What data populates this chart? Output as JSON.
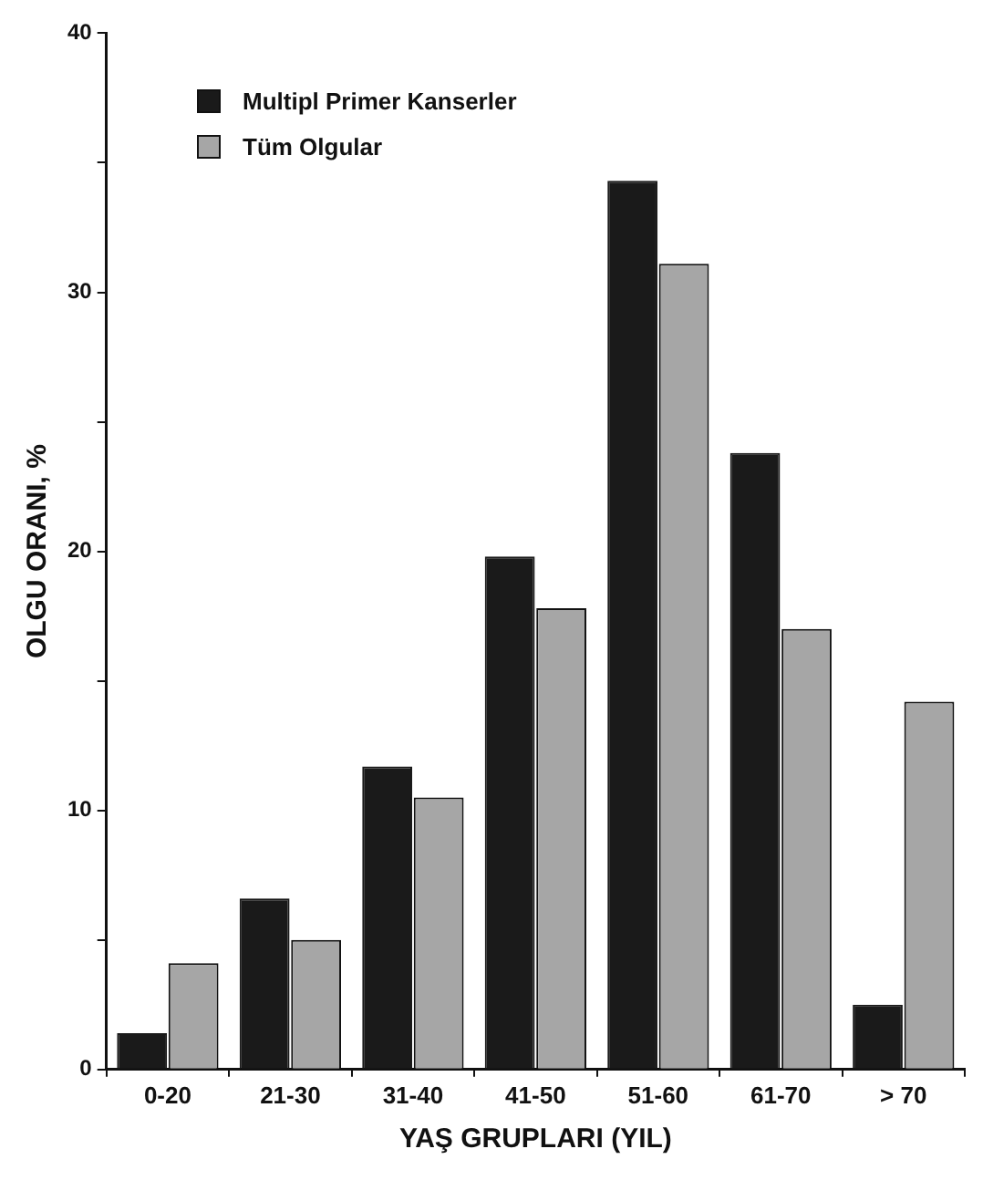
{
  "chart_data": {
    "type": "bar",
    "xlabel": "YAŞ GRUPLARI (YIL)",
    "ylabel": "OLGU ORANI, %",
    "categories": [
      "0-20",
      "21-30",
      "31-40",
      "41-50",
      "51-60",
      "61-70",
      "> 70"
    ],
    "series": [
      {
        "name": "Multipl Primer Kanserler",
        "color": "#1a1a1a",
        "values": [
          1.4,
          6.6,
          11.7,
          19.8,
          34.3,
          23.8,
          2.5
        ]
      },
      {
        "name": "Tüm Olgular",
        "color": "#a6a6a6",
        "values": [
          4.1,
          5.0,
          10.5,
          17.8,
          31.1,
          17.0,
          14.2
        ]
      }
    ],
    "ylim": [
      0,
      40
    ],
    "yticks": [
      0,
      {
        "value": 5,
        "label": null
      },
      10,
      {
        "value": 15,
        "label": null
      },
      20,
      {
        "value": 25,
        "label": null
      },
      30,
      {
        "value": 35,
        "label": null
      },
      40
    ],
    "grid": false,
    "legend": "top left"
  }
}
